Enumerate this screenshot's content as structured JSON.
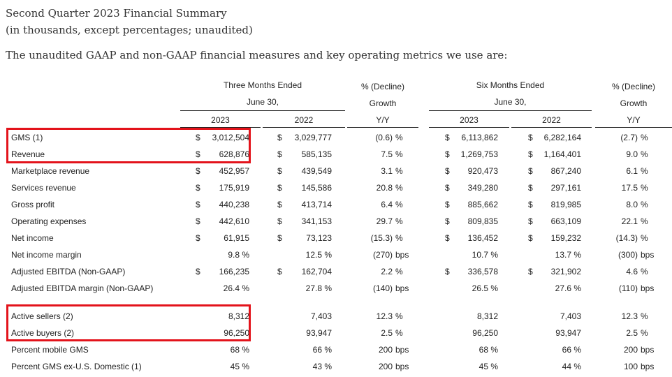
{
  "header": {
    "title": "Second Quarter 2023 Financial Summary",
    "subtitle": "(in thousands, except percentages; unaudited)",
    "intro": "The unaudited GAAP and non-GAAP financial measures and key operating metrics we use are:"
  },
  "columns": {
    "three_months": "Three Months Ended",
    "six_months": "Six Months Ended",
    "june30": "June 30,",
    "decline": "% (Decline)",
    "growth": "Growth",
    "yy": "Y/Y",
    "y2023": "2023",
    "y2022": "2022"
  },
  "rows": [
    {
      "label": "GMS (1)",
      "q23c": "$",
      "q23": "3,012,504",
      "q22c": "$",
      "q22": "3,029,777",
      "qy": "(0.6)",
      "qys": "%",
      "h23c": "$",
      "h23": "6,113,862",
      "h22c": "$",
      "h22": "6,282,164",
      "hy": "(2.7)",
      "hys": "%"
    },
    {
      "label": "Revenue",
      "q23c": "$",
      "q23": "628,876",
      "q22c": "$",
      "q22": "585,135",
      "qy": "7.5",
      "qys": "%",
      "h23c": "$",
      "h23": "1,269,753",
      "h22c": "$",
      "h22": "1,164,401",
      "hy": "9.0",
      "hys": "%"
    },
    {
      "label": "Marketplace revenue",
      "q23c": "$",
      "q23": "452,957",
      "q22c": "$",
      "q22": "439,549",
      "qy": "3.1",
      "qys": "%",
      "h23c": "$",
      "h23": "920,473",
      "h22c": "$",
      "h22": "867,240",
      "hy": "6.1",
      "hys": "%"
    },
    {
      "label": "Services revenue",
      "q23c": "$",
      "q23": "175,919",
      "q22c": "$",
      "q22": "145,586",
      "qy": "20.8",
      "qys": "%",
      "h23c": "$",
      "h23": "349,280",
      "h22c": "$",
      "h22": "297,161",
      "hy": "17.5",
      "hys": "%"
    },
    {
      "label": "Gross profit",
      "q23c": "$",
      "q23": "440,238",
      "q22c": "$",
      "q22": "413,714",
      "qy": "6.4",
      "qys": "%",
      "h23c": "$",
      "h23": "885,662",
      "h22c": "$",
      "h22": "819,985",
      "hy": "8.0",
      "hys": "%"
    },
    {
      "label": "Operating expenses",
      "q23c": "$",
      "q23": "442,610",
      "q22c": "$",
      "q22": "341,153",
      "qy": "29.7",
      "qys": "%",
      "h23c": "$",
      "h23": "809,835",
      "h22c": "$",
      "h22": "663,109",
      "hy": "22.1",
      "hys": "%"
    },
    {
      "label": "Net income",
      "q23c": "$",
      "q23": "61,915",
      "q22c": "$",
      "q22": "73,123",
      "qy": "(15.3)",
      "qys": "%",
      "h23c": "$",
      "h23": "136,452",
      "h22c": "$",
      "h22": "159,232",
      "hy": "(14.3)",
      "hys": "%"
    },
    {
      "label": "Net income margin",
      "q23c": "",
      "q23": "9.8 %",
      "q22c": "",
      "q22": "12.5 %",
      "qy": "(270)",
      "qys": "bps",
      "h23c": "",
      "h23": "10.7 %",
      "h22c": "",
      "h22": "13.7 %",
      "hy": "(300)",
      "hys": "bps"
    },
    {
      "label": "Adjusted EBITDA (Non-GAAP)",
      "q23c": "$",
      "q23": "166,235",
      "q22c": "$",
      "q22": "162,704",
      "qy": "2.2",
      "qys": "%",
      "h23c": "$",
      "h23": "336,578",
      "h22c": "$",
      "h22": "321,902",
      "hy": "4.6",
      "hys": "%"
    },
    {
      "label": "Adjusted EBITDA margin (Non-GAAP)",
      "q23c": "",
      "q23": "26.4 %",
      "q22c": "",
      "q22": "27.8 %",
      "qy": "(140)",
      "qys": "bps",
      "h23c": "",
      "h23": "26.5 %",
      "h22c": "",
      "h22": "27.6 %",
      "hy": "(110)",
      "hys": "bps"
    },
    {
      "label": "Active sellers (2)",
      "q23c": "",
      "q23": "8,312",
      "q22c": "",
      "q22": "7,403",
      "qy": "12.3",
      "qys": "%",
      "h23c": "",
      "h23": "8,312",
      "h22c": "",
      "h22": "7,403",
      "hy": "12.3",
      "hys": "%"
    },
    {
      "label": "Active buyers (2)",
      "q23c": "",
      "q23": "96,250",
      "q22c": "",
      "q22": "93,947",
      "qy": "2.5",
      "qys": "%",
      "h23c": "",
      "h23": "96,250",
      "h22c": "",
      "h22": "93,947",
      "hy": "2.5",
      "hys": "%"
    },
    {
      "label": "Percent mobile GMS",
      "q23c": "",
      "q23": "68 %",
      "q22c": "",
      "q22": "66 %",
      "qy": "200",
      "qys": "bps",
      "h23c": "",
      "h23": "68 %",
      "h22c": "",
      "h22": "66 %",
      "hy": "200",
      "hys": "bps"
    },
    {
      "label": "Percent GMS ex-U.S. Domestic (1)",
      "q23c": "",
      "q23": "45 %",
      "q22c": "",
      "q22": "43 %",
      "qy": "200",
      "qys": "bps",
      "h23c": "",
      "h23": "45 %",
      "h22c": "",
      "h22": "44 %",
      "hy": "100",
      "hys": "bps"
    }
  ],
  "highlight_color": "#e3131b"
}
